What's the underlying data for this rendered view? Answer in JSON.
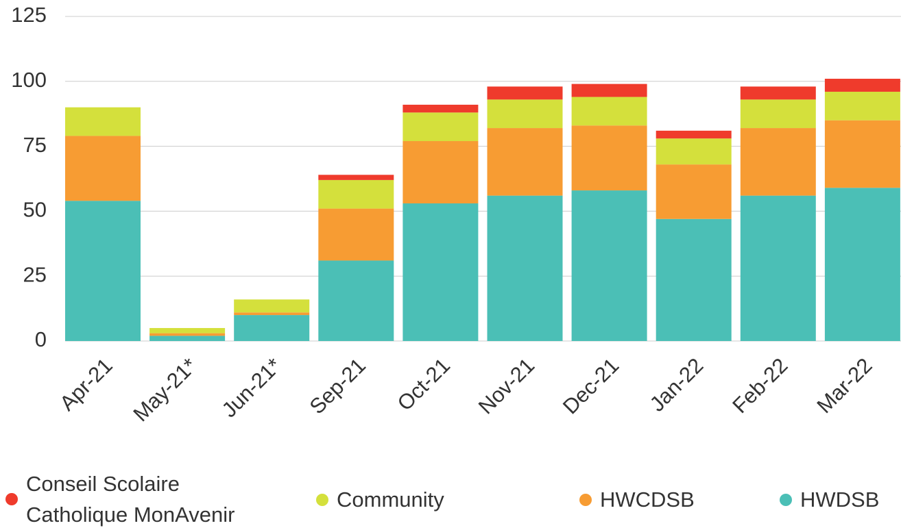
{
  "chart_data": {
    "type": "stacked_bar",
    "categories": [
      "Apr-21",
      "May-21*",
      "Jun-21*",
      "Sep-21",
      "Oct-21",
      "Nov-21",
      "Dec-21",
      "Jan-22",
      "Feb-22",
      "Mar-22"
    ],
    "series": [
      {
        "name": "HWDSB",
        "color": "#4bbfb6",
        "values": [
          54,
          2,
          10,
          31,
          53,
          56,
          58,
          47,
          56,
          59
        ]
      },
      {
        "name": "HWCDSB",
        "color": "#f79c33",
        "values": [
          25,
          1,
          1,
          20,
          24,
          26,
          25,
          21,
          26,
          26
        ]
      },
      {
        "name": "Community",
        "color": "#d4e03c",
        "values": [
          11,
          2,
          5,
          11,
          11,
          11,
          11,
          10,
          11,
          11
        ]
      },
      {
        "name": "Conseil Scolaire Catholique MonAvenir",
        "color": "#ef3b2c",
        "values": [
          0,
          0,
          0,
          2,
          3,
          5,
          5,
          3,
          5,
          5
        ]
      }
    ],
    "ylim": [
      0,
      125
    ],
    "yticks": [
      0,
      25,
      50,
      75,
      100,
      125
    ],
    "grid": true
  }
}
